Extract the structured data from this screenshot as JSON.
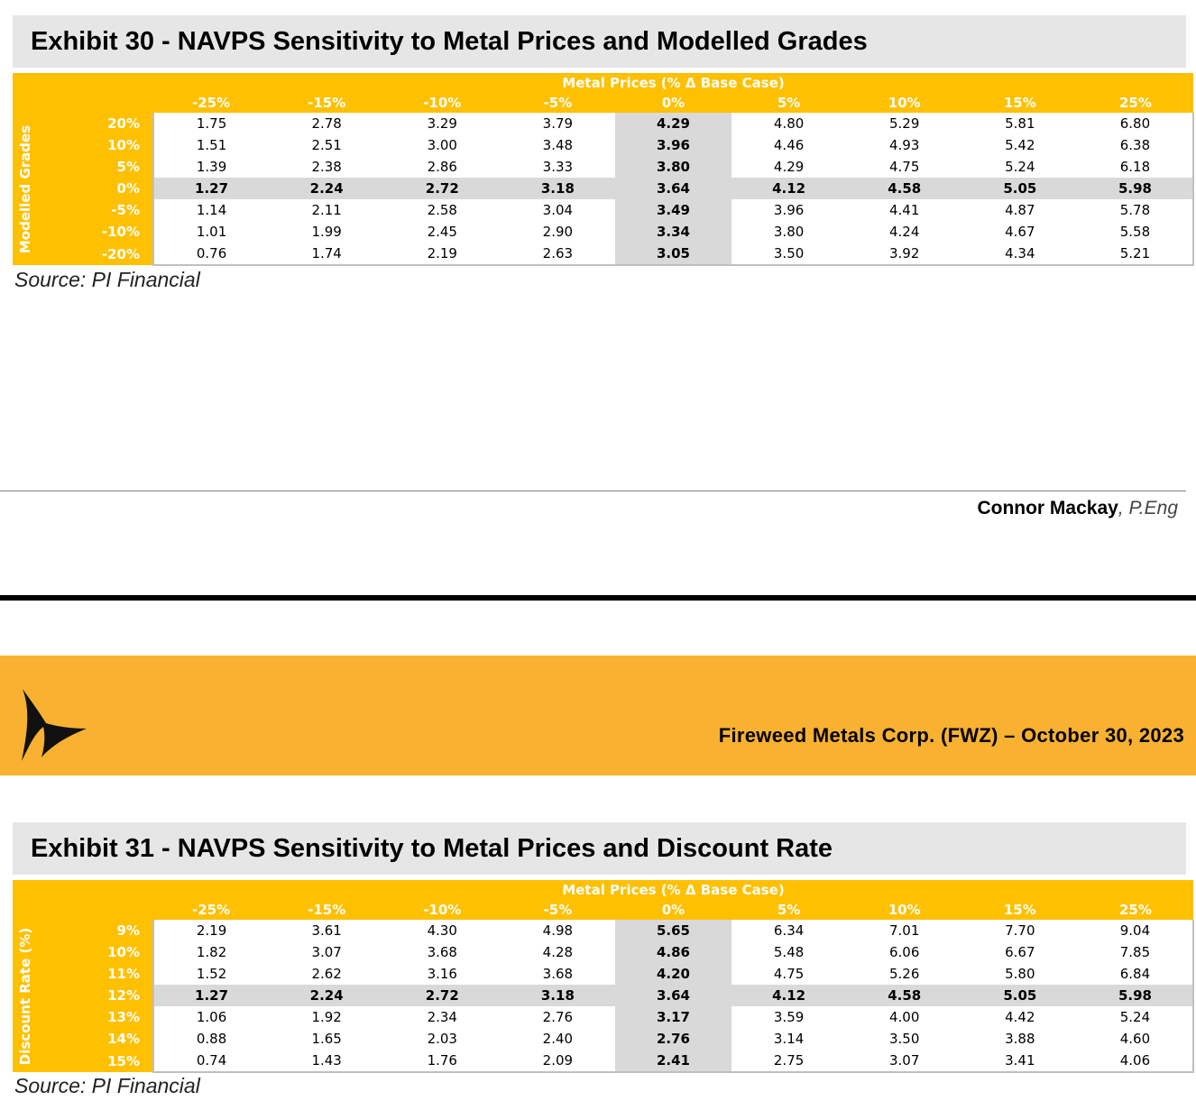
{
  "exhibit30": {
    "title": "Exhibit 30 - NAVPS Sensitivity to Metal Prices and Modelled Grades",
    "band_label": "Metal Prices (% Δ Base Case)",
    "side_label": "Modelled Grades",
    "columns": [
      "-25%",
      "-15%",
      "-10%",
      "-5%",
      "0%",
      "5%",
      "10%",
      "15%",
      "25%"
    ],
    "base_col_index": 4,
    "base_row_index": 3,
    "rows": [
      {
        "label": "20%",
        "values": [
          "1.75",
          "2.78",
          "3.29",
          "3.79",
          "4.29",
          "4.80",
          "5.29",
          "5.81",
          "6.80"
        ]
      },
      {
        "label": "10%",
        "values": [
          "1.51",
          "2.51",
          "3.00",
          "3.48",
          "3.96",
          "4.46",
          "4.93",
          "5.42",
          "6.38"
        ]
      },
      {
        "label": "5%",
        "values": [
          "1.39",
          "2.38",
          "2.86",
          "3.33",
          "3.80",
          "4.29",
          "4.75",
          "5.24",
          "6.18"
        ]
      },
      {
        "label": "0%",
        "values": [
          "1.27",
          "2.24",
          "2.72",
          "3.18",
          "3.64",
          "4.12",
          "4.58",
          "5.05",
          "5.98"
        ]
      },
      {
        "label": "-5%",
        "values": [
          "1.14",
          "2.11",
          "2.58",
          "3.04",
          "3.49",
          "3.96",
          "4.41",
          "4.87",
          "5.78"
        ]
      },
      {
        "label": "-10%",
        "values": [
          "1.01",
          "1.99",
          "2.45",
          "2.90",
          "3.34",
          "3.80",
          "4.24",
          "4.67",
          "5.58"
        ]
      },
      {
        "label": "-20%",
        "values": [
          "0.76",
          "1.74",
          "2.19",
          "2.63",
          "3.05",
          "3.50",
          "3.92",
          "4.34",
          "5.21"
        ]
      }
    ],
    "source": "Source: PI Financial"
  },
  "author": {
    "name": "Connor Mackay",
    "credential": ", P.Eng"
  },
  "banner": {
    "company": "Fireweed Metals Corp. (FWZ) – October 30, 2023",
    "logo_icon": "triangular-arrow-logo-icon"
  },
  "exhibit31": {
    "title": "Exhibit 31 - NAVPS Sensitivity to Metal Prices and Discount Rate",
    "band_label": "Metal Prices (% Δ Base Case)",
    "side_label": "Discount Rate (%)",
    "columns": [
      "-25%",
      "-15%",
      "-10%",
      "-5%",
      "0%",
      "5%",
      "10%",
      "15%",
      "25%"
    ],
    "base_col_index": 4,
    "base_row_index": 3,
    "rows": [
      {
        "label": "9%",
        "values": [
          "2.19",
          "3.61",
          "4.30",
          "4.98",
          "5.65",
          "6.34",
          "7.01",
          "7.70",
          "9.04"
        ]
      },
      {
        "label": "10%",
        "values": [
          "1.82",
          "3.07",
          "3.68",
          "4.28",
          "4.86",
          "5.48",
          "6.06",
          "6.67",
          "7.85"
        ]
      },
      {
        "label": "11%",
        "values": [
          "1.52",
          "2.62",
          "3.16",
          "3.68",
          "4.20",
          "4.75",
          "5.26",
          "5.80",
          "6.84"
        ]
      },
      {
        "label": "12%",
        "values": [
          "1.27",
          "2.24",
          "2.72",
          "3.18",
          "3.64",
          "4.12",
          "4.58",
          "5.05",
          "5.98"
        ]
      },
      {
        "label": "13%",
        "values": [
          "1.06",
          "1.92",
          "2.34",
          "2.76",
          "3.17",
          "3.59",
          "4.00",
          "4.42",
          "5.24"
        ]
      },
      {
        "label": "14%",
        "values": [
          "0.88",
          "1.65",
          "2.03",
          "2.40",
          "2.76",
          "3.14",
          "3.50",
          "3.88",
          "4.60"
        ]
      },
      {
        "label": "15%",
        "values": [
          "0.74",
          "1.43",
          "1.76",
          "2.09",
          "2.41",
          "2.75",
          "3.07",
          "3.41",
          "4.06"
        ]
      }
    ],
    "source": "Source: PI Financial"
  }
}
